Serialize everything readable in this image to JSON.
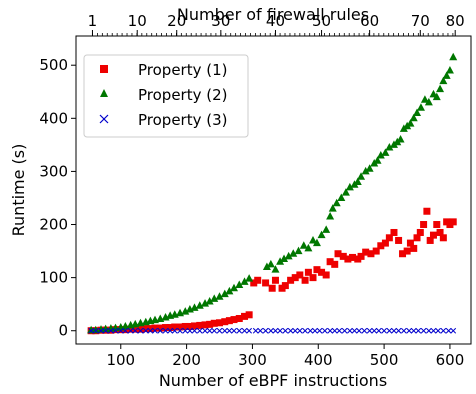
{
  "chart_data": {
    "type": "scatter",
    "xlabel": "Number of eBPF instructions",
    "ylabel": "Runtime (s)",
    "top_xlabel": "Number of firewall rules",
    "xlim": [
      32,
      632
    ],
    "ylim": [
      -25,
      555
    ],
    "x_ticks": [
      100,
      200,
      300,
      400,
      500,
      600
    ],
    "y_ticks": [
      0,
      100,
      200,
      300,
      400,
      500
    ],
    "top_ticks": [
      {
        "label": "1",
        "x": 57
      },
      {
        "label": "10",
        "x": 125
      },
      {
        "label": "20",
        "x": 185
      },
      {
        "label": "30",
        "x": 252
      },
      {
        "label": "40",
        "x": 335
      },
      {
        "label": "50",
        "x": 405
      },
      {
        "label": "60",
        "x": 478
      },
      {
        "label": "70",
        "x": 555
      },
      {
        "label": "80",
        "x": 608
      }
    ],
    "top_minor_tick_step": 7.5,
    "legend_position": "top-left",
    "series": [
      {
        "name": "Property (1)",
        "marker": "square",
        "color": "#ee0000",
        "points": [
          [
            55,
            0
          ],
          [
            62,
            0
          ],
          [
            70,
            1
          ],
          [
            77,
            1
          ],
          [
            85,
            1
          ],
          [
            92,
            2
          ],
          [
            100,
            2
          ],
          [
            107,
            2
          ],
          [
            115,
            3
          ],
          [
            122,
            3
          ],
          [
            130,
            3
          ],
          [
            138,
            4
          ],
          [
            145,
            4
          ],
          [
            152,
            5
          ],
          [
            160,
            5
          ],
          [
            168,
            6
          ],
          [
            175,
            6
          ],
          [
            182,
            7
          ],
          [
            190,
            7
          ],
          [
            198,
            8
          ],
          [
            205,
            8
          ],
          [
            212,
            9
          ],
          [
            220,
            10
          ],
          [
            228,
            11
          ],
          [
            235,
            12
          ],
          [
            242,
            14
          ],
          [
            250,
            15
          ],
          [
            258,
            17
          ],
          [
            265,
            19
          ],
          [
            272,
            21
          ],
          [
            280,
            23
          ],
          [
            288,
            27
          ],
          [
            295,
            30
          ],
          [
            302,
            90
          ],
          [
            308,
            95
          ],
          [
            320,
            90
          ],
          [
            330,
            80
          ],
          [
            335,
            95
          ],
          [
            345,
            80
          ],
          [
            350,
            85
          ],
          [
            358,
            95
          ],
          [
            365,
            100
          ],
          [
            372,
            105
          ],
          [
            380,
            95
          ],
          [
            385,
            110
          ],
          [
            392,
            100
          ],
          [
            398,
            115
          ],
          [
            405,
            110
          ],
          [
            412,
            105
          ],
          [
            418,
            130
          ],
          [
            425,
            125
          ],
          [
            430,
            145
          ],
          [
            438,
            140
          ],
          [
            445,
            135
          ],
          [
            452,
            138
          ],
          [
            460,
            135
          ],
          [
            465,
            140
          ],
          [
            472,
            148
          ],
          [
            480,
            145
          ],
          [
            488,
            150
          ],
          [
            495,
            160
          ],
          [
            502,
            165
          ],
          [
            508,
            175
          ],
          [
            515,
            185
          ],
          [
            522,
            170
          ],
          [
            528,
            145
          ],
          [
            535,
            150
          ],
          [
            540,
            165
          ],
          [
            545,
            155
          ],
          [
            550,
            175
          ],
          [
            555,
            185
          ],
          [
            560,
            200
          ],
          [
            565,
            225
          ],
          [
            570,
            170
          ],
          [
            575,
            180
          ],
          [
            580,
            200
          ],
          [
            585,
            185
          ],
          [
            590,
            175
          ],
          [
            595,
            205
          ],
          [
            600,
            200
          ],
          [
            605,
            205
          ]
        ]
      },
      {
        "name": "Property (2)",
        "marker": "triangle",
        "color": "#007700",
        "points": [
          [
            55,
            1
          ],
          [
            62,
            1
          ],
          [
            70,
            2
          ],
          [
            77,
            3
          ],
          [
            85,
            4
          ],
          [
            92,
            5
          ],
          [
            100,
            6
          ],
          [
            107,
            8
          ],
          [
            115,
            10
          ],
          [
            122,
            12
          ],
          [
            130,
            14
          ],
          [
            138,
            16
          ],
          [
            145,
            18
          ],
          [
            152,
            20
          ],
          [
            160,
            22
          ],
          [
            168,
            25
          ],
          [
            175,
            28
          ],
          [
            182,
            30
          ],
          [
            190,
            33
          ],
          [
            198,
            36
          ],
          [
            205,
            40
          ],
          [
            212,
            43
          ],
          [
            220,
            47
          ],
          [
            228,
            51
          ],
          [
            235,
            55
          ],
          [
            242,
            60
          ],
          [
            250,
            64
          ],
          [
            258,
            69
          ],
          [
            265,
            74
          ],
          [
            272,
            80
          ],
          [
            280,
            86
          ],
          [
            288,
            92
          ],
          [
            295,
            98
          ],
          [
            322,
            120
          ],
          [
            328,
            125
          ],
          [
            335,
            115
          ],
          [
            342,
            130
          ],
          [
            348,
            135
          ],
          [
            355,
            140
          ],
          [
            362,
            145
          ],
          [
            370,
            150
          ],
          [
            378,
            160
          ],
          [
            385,
            155
          ],
          [
            392,
            170
          ],
          [
            398,
            165
          ],
          [
            405,
            180
          ],
          [
            412,
            190
          ],
          [
            418,
            215
          ],
          [
            422,
            230
          ],
          [
            428,
            240
          ],
          [
            435,
            250
          ],
          [
            442,
            260
          ],
          [
            448,
            270
          ],
          [
            455,
            275
          ],
          [
            460,
            280
          ],
          [
            465,
            290
          ],
          [
            472,
            300
          ],
          [
            478,
            305
          ],
          [
            485,
            315
          ],
          [
            490,
            320
          ],
          [
            495,
            330
          ],
          [
            502,
            335
          ],
          [
            508,
            345
          ],
          [
            515,
            350
          ],
          [
            520,
            355
          ],
          [
            525,
            360
          ],
          [
            530,
            380
          ],
          [
            535,
            385
          ],
          [
            540,
            390
          ],
          [
            545,
            400
          ],
          [
            550,
            410
          ],
          [
            556,
            420
          ],
          [
            562,
            435
          ],
          [
            568,
            430
          ],
          [
            575,
            445
          ],
          [
            580,
            440
          ],
          [
            585,
            455
          ],
          [
            590,
            470
          ],
          [
            595,
            480
          ],
          [
            600,
            490
          ],
          [
            605,
            515
          ]
        ]
      },
      {
        "name": "Property (3)",
        "marker": "x",
        "color": "#0000cc",
        "points": [
          [
            55,
            0
          ],
          [
            62,
            0
          ],
          [
            70,
            0
          ],
          [
            77,
            0
          ],
          [
            85,
            0
          ],
          [
            92,
            0
          ],
          [
            100,
            0
          ],
          [
            107,
            0
          ],
          [
            115,
            0
          ],
          [
            122,
            0
          ],
          [
            130,
            0
          ],
          [
            138,
            0
          ],
          [
            145,
            0
          ],
          [
            152,
            0
          ],
          [
            160,
            0
          ],
          [
            168,
            0
          ],
          [
            175,
            0
          ],
          [
            182,
            0
          ],
          [
            190,
            0
          ],
          [
            198,
            0
          ],
          [
            205,
            0
          ],
          [
            212,
            0
          ],
          [
            220,
            0
          ],
          [
            228,
            0
          ],
          [
            235,
            0
          ],
          [
            242,
            0
          ],
          [
            250,
            0
          ],
          [
            258,
            0
          ],
          [
            265,
            0
          ],
          [
            272,
            0
          ],
          [
            280,
            0
          ],
          [
            288,
            0
          ],
          [
            295,
            0
          ],
          [
            305,
            0
          ],
          [
            312,
            0
          ],
          [
            320,
            0
          ],
          [
            328,
            0
          ],
          [
            335,
            0
          ],
          [
            342,
            0
          ],
          [
            350,
            0
          ],
          [
            358,
            0
          ],
          [
            365,
            0
          ],
          [
            372,
            0
          ],
          [
            380,
            0
          ],
          [
            388,
            0
          ],
          [
            395,
            0
          ],
          [
            402,
            0
          ],
          [
            410,
            0
          ],
          [
            418,
            0
          ],
          [
            425,
            0
          ],
          [
            432,
            0
          ],
          [
            440,
            0
          ],
          [
            448,
            0
          ],
          [
            455,
            0
          ],
          [
            462,
            0
          ],
          [
            470,
            0
          ],
          [
            478,
            0
          ],
          [
            485,
            0
          ],
          [
            492,
            0
          ],
          [
            500,
            0
          ],
          [
            508,
            0
          ],
          [
            515,
            0
          ],
          [
            522,
            0
          ],
          [
            530,
            0
          ],
          [
            538,
            0
          ],
          [
            545,
            0
          ],
          [
            552,
            0
          ],
          [
            560,
            0
          ],
          [
            568,
            0
          ],
          [
            575,
            0
          ],
          [
            582,
            0
          ],
          [
            590,
            0
          ],
          [
            598,
            0
          ],
          [
            605,
            0
          ]
        ]
      }
    ]
  }
}
